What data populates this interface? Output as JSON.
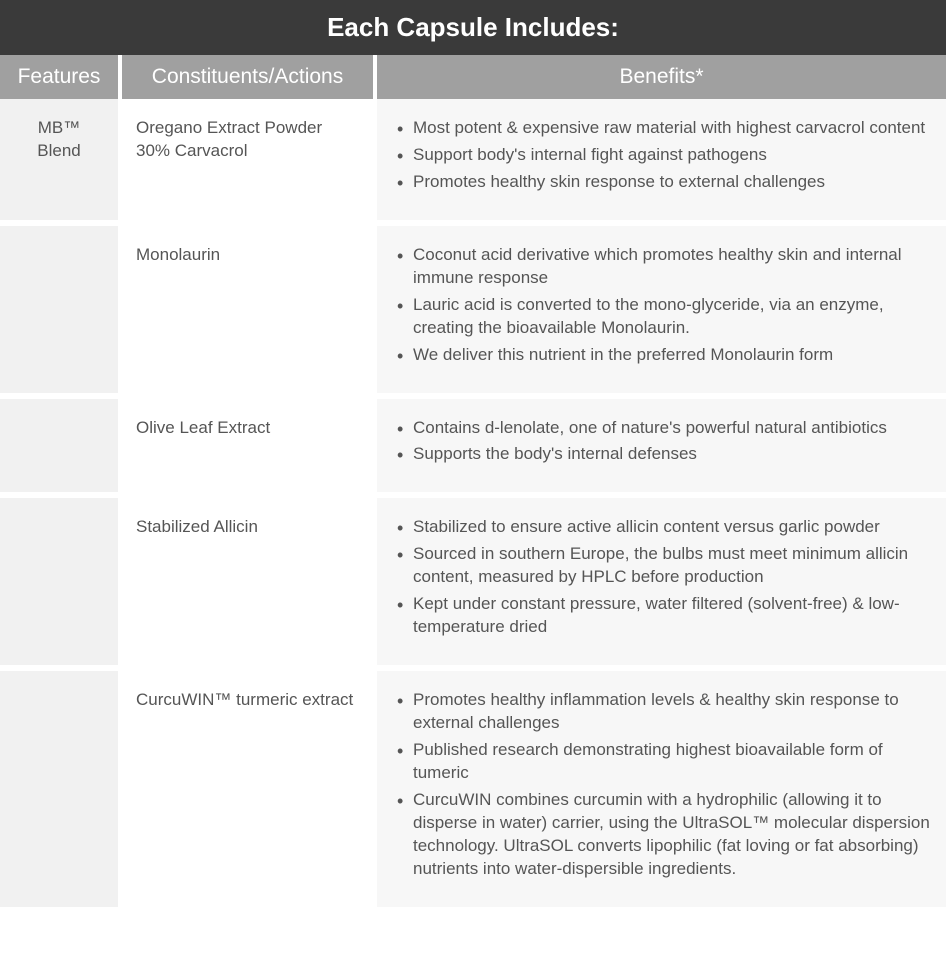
{
  "table": {
    "title": "Each Capsule Includes:",
    "headers": {
      "features": "Features",
      "constituents": "Constituents/Actions",
      "benefits": "Benefits*"
    },
    "rows": [
      {
        "feature": "MB™ Blend",
        "constituent": "Oregano Extract Powder 30% Carvacrol",
        "benefits": [
          "Most potent & expensive raw material with highest carvacrol content",
          "Support body's internal fight against pathogens",
          "Promotes healthy skin response to external challenges"
        ]
      },
      {
        "feature": "",
        "constituent": "Monolaurin",
        "benefits": [
          "Coconut acid derivative which promotes healthy skin and internal immune response",
          "Lauric acid is converted to the mono-glyceride, via an enzyme, creating the bioavailable Monolaurin.",
          "We deliver this nutrient in the preferred Monolaurin form"
        ]
      },
      {
        "feature": "",
        "constituent": "Olive Leaf Extract",
        "benefits": [
          "Contains d-lenolate, one of nature's powerful natural antibiotics",
          "Supports the body's internal defenses"
        ]
      },
      {
        "feature": "",
        "constituent": "Stabilized Allicin",
        "benefits": [
          "Stabilized to ensure active allicin content versus garlic powder",
          "Sourced in southern Europe, the bulbs must meet minimum allicin content, measured by HPLC before production",
          "Kept under constant pressure, water filtered (solvent-free) & low-temperature dried"
        ]
      },
      {
        "feature": "",
        "constituent": "CurcuWIN™ turmeric extract",
        "benefits": [
          "Promotes healthy inflammation levels & healthy skin response to external challenges",
          "Published research demonstrating highest bioavailable form of tumeric",
          "CurcuWIN combines curcumin with a hydrophilic (allowing it to disperse in water) carrier, using the UltraSOL™ molecular dispersion technology. UltraSOL converts lipophilic (fat loving or fat absorbing) nutrients into water-dispersible ingredients."
        ]
      }
    ]
  },
  "styling": {
    "title_bg": "#3a3a3a",
    "title_color": "#ffffff",
    "title_fontsize": 26,
    "header_bg": "#a0a0a0",
    "header_color": "#ffffff",
    "header_fontsize": 21,
    "features_bg": "#f1f1f1",
    "constituents_bg": "#ffffff",
    "benefits_bg": "#f7f7f7",
    "text_color": "#555555",
    "body_fontsize": 17,
    "row_gap_color": "#ffffff",
    "col_features_width": 120,
    "col_constituents_width": 255
  }
}
